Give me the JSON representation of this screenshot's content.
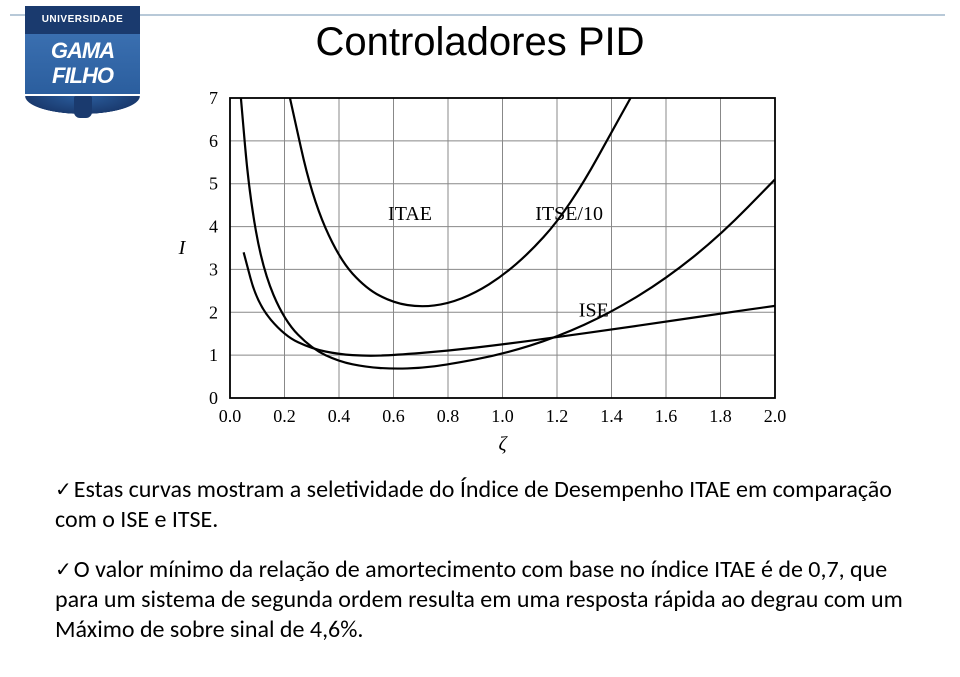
{
  "logo": {
    "top": "UNIVERSIDADE",
    "line1": "GAMA",
    "line2": "FILHO"
  },
  "title": "Controladores PID",
  "paragraphs": {
    "p1": "Estas curvas mostram a seletividade do Índice de Desempenho ITAE em comparação com o ISE e ITSE.",
    "p2": "O valor mínimo da relação de amortecimento com base no índice ITAE é de 0,7, que para um sistema de segunda ordem resulta em uma resposta rápida ao degrau com um Máximo de sobre sinal de 4,6%."
  },
  "chart": {
    "type": "line",
    "xlabel": "ζ",
    "ylabel": "I",
    "x_ticks": [
      "0.0",
      "0.2",
      "0.4",
      "0.6",
      "0.8",
      "1.0",
      "1.2",
      "1.4",
      "1.6",
      "1.8",
      "2.0"
    ],
    "y_ticks": [
      "0",
      "1",
      "2",
      "3",
      "4",
      "5",
      "6",
      "7"
    ],
    "xlim": [
      0.0,
      2.0
    ],
    "ylim": [
      0,
      7
    ],
    "grid_color": "#888888",
    "axis_color": "#000000",
    "background_color": "#ffffff",
    "line_color": "#000000",
    "line_width": 2.2,
    "tick_fontsize": 18,
    "label_fontsize": 20,
    "curve_label_fontsize": 20,
    "series": {
      "ISE": {
        "label": "ISE",
        "label_pos": {
          "x": 1.28,
          "y": 1.9
        },
        "points": [
          {
            "x": 0.05,
            "y": 3.4
          },
          {
            "x": 0.1,
            "y": 2.2
          },
          {
            "x": 0.2,
            "y": 1.45
          },
          {
            "x": 0.3,
            "y": 1.15
          },
          {
            "x": 0.4,
            "y": 1.02
          },
          {
            "x": 0.5,
            "y": 0.98
          },
          {
            "x": 0.6,
            "y": 1.0
          },
          {
            "x": 0.8,
            "y": 1.1
          },
          {
            "x": 1.0,
            "y": 1.25
          },
          {
            "x": 1.2,
            "y": 1.42
          },
          {
            "x": 1.4,
            "y": 1.6
          },
          {
            "x": 1.6,
            "y": 1.78
          },
          {
            "x": 1.8,
            "y": 1.97
          },
          {
            "x": 2.0,
            "y": 2.15
          }
        ]
      },
      "ITAE": {
        "label": "ITAE",
        "label_pos": {
          "x": 0.58,
          "y": 4.15
        },
        "points": [
          {
            "x": 0.22,
            "y": 7.0
          },
          {
            "x": 0.3,
            "y": 4.7
          },
          {
            "x": 0.4,
            "y": 3.25
          },
          {
            "x": 0.5,
            "y": 2.55
          },
          {
            "x": 0.6,
            "y": 2.22
          },
          {
            "x": 0.7,
            "y": 2.12
          },
          {
            "x": 0.8,
            "y": 2.2
          },
          {
            "x": 0.9,
            "y": 2.45
          },
          {
            "x": 1.0,
            "y": 2.85
          },
          {
            "x": 1.1,
            "y": 3.4
          },
          {
            "x": 1.2,
            "y": 4.1
          },
          {
            "x": 1.3,
            "y": 5.05
          },
          {
            "x": 1.4,
            "y": 6.2
          },
          {
            "x": 1.47,
            "y": 7.0
          }
        ]
      },
      "ITSE10": {
        "label": "ITSE/10",
        "label_pos": {
          "x": 1.12,
          "y": 4.15
        },
        "points": [
          {
            "x": 0.04,
            "y": 7.0
          },
          {
            "x": 0.07,
            "y": 4.8
          },
          {
            "x": 0.12,
            "y": 3.0
          },
          {
            "x": 0.2,
            "y": 1.8
          },
          {
            "x": 0.3,
            "y": 1.15
          },
          {
            "x": 0.4,
            "y": 0.85
          },
          {
            "x": 0.5,
            "y": 0.72
          },
          {
            "x": 0.6,
            "y": 0.68
          },
          {
            "x": 0.7,
            "y": 0.7
          },
          {
            "x": 0.8,
            "y": 0.78
          },
          {
            "x": 1.0,
            "y": 1.02
          },
          {
            "x": 1.2,
            "y": 1.42
          },
          {
            "x": 1.4,
            "y": 2.0
          },
          {
            "x": 1.6,
            "y": 2.78
          },
          {
            "x": 1.8,
            "y": 3.8
          },
          {
            "x": 2.0,
            "y": 5.1
          }
        ]
      }
    }
  }
}
